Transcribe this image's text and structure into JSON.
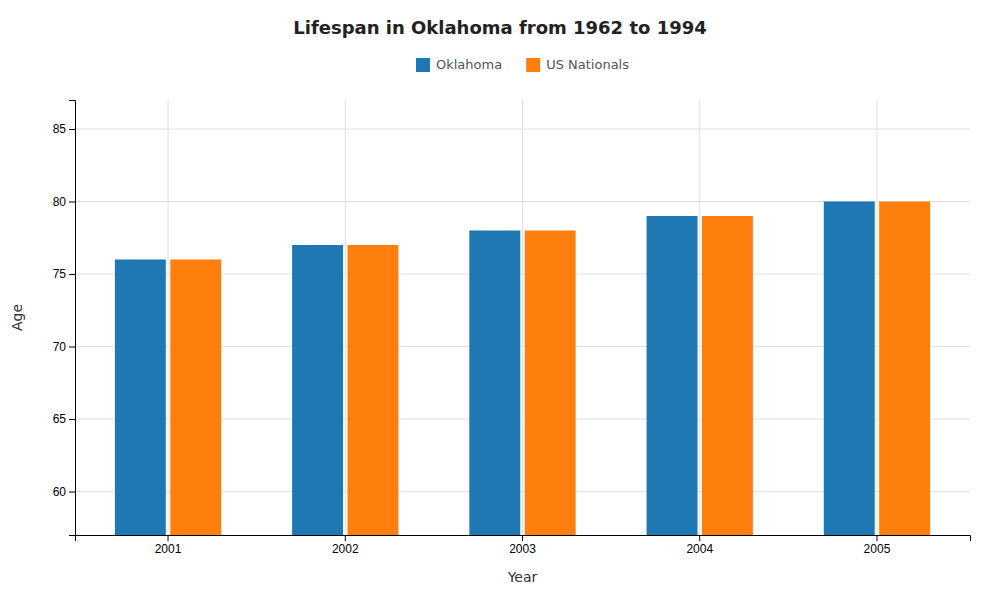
{
  "chart_data": {
    "type": "bar",
    "title": "Lifespan in Oklahoma from 1962 to 1994",
    "xlabel": "Year",
    "ylabel": "Age",
    "categories": [
      "2001",
      "2002",
      "2003",
      "2004",
      "2005"
    ],
    "series": [
      {
        "name": "Oklahoma",
        "values": [
          76,
          77,
          78,
          79,
          80
        ]
      },
      {
        "name": "US Nationals",
        "values": [
          76,
          77,
          78,
          79,
          80
        ]
      }
    ],
    "ylim": [
      57,
      87
    ],
    "yticks": [
      60,
      65,
      70,
      75,
      80,
      85
    ],
    "grid": true,
    "legend": "top"
  }
}
